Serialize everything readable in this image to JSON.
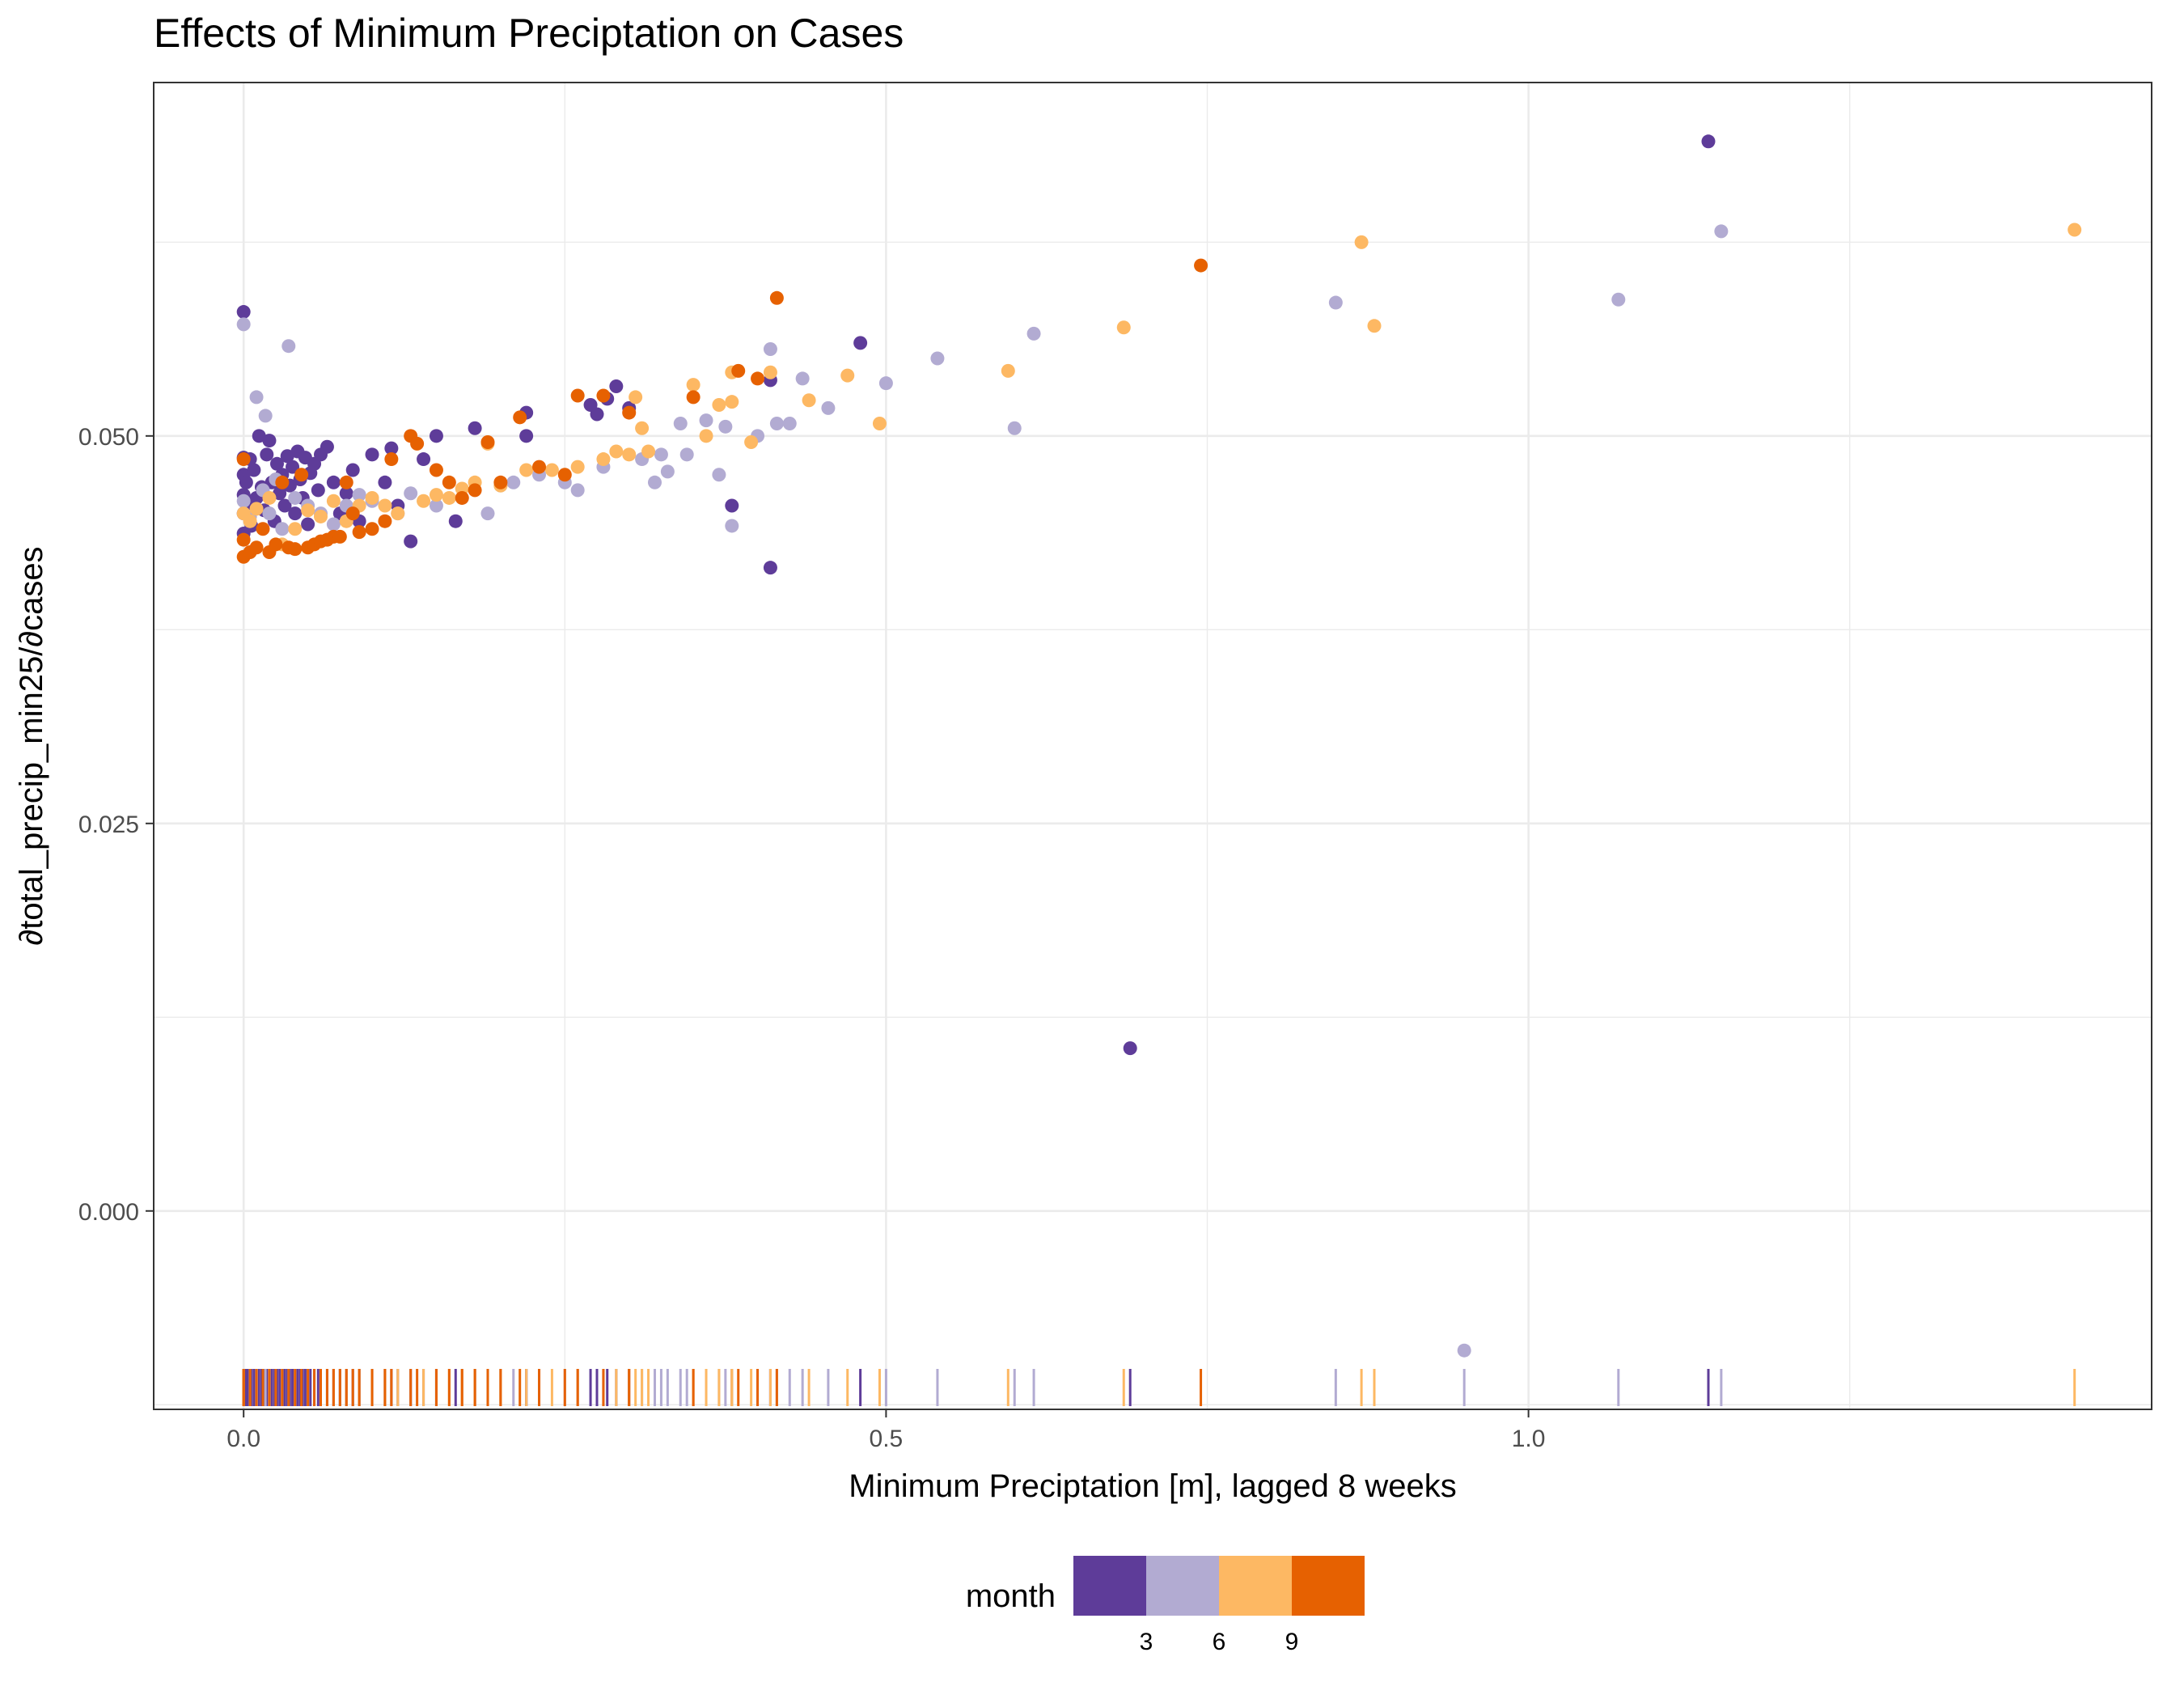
{
  "chart_data": {
    "type": "scatter",
    "title": "Effects of Minimum Preciptation on Cases",
    "xlabel": "Minimum Preciptation [m], lagged 8 weeks",
    "ylabel": "∂total_precip_min25/∂cases",
    "xlim": [
      -0.07,
      1.485
    ],
    "ylim": [
      -0.0128,
      0.0728
    ],
    "x_ticks": [
      0.0,
      0.5,
      1.0
    ],
    "x_tick_labels": [
      "0.0",
      "0.5",
      "1.0"
    ],
    "y_ticks": [
      0.0,
      0.025,
      0.05
    ],
    "y_tick_labels": [
      "0.000",
      "0.025",
      "0.050"
    ],
    "grid": true,
    "rug": "bottom",
    "legend": {
      "title": "month",
      "position": "bottom",
      "type": "binned colorbar",
      "bins": [
        {
          "color": "#5e3c99"
        },
        {
          "color": "#b2abd2"
        },
        {
          "color": "#fdb863"
        },
        {
          "color": "#e66101"
        }
      ],
      "break_labels": [
        "3",
        "6",
        "9"
      ]
    },
    "series": [
      {
        "color": "#5e3c99",
        "points": [
          [
            0.0,
            0.058
          ],
          [
            0.0,
            0.0486
          ],
          [
            0.0,
            0.0475
          ],
          [
            0.0,
            0.0462
          ],
          [
            0.0,
            0.045
          ],
          [
            0.0,
            0.0437
          ],
          [
            0.002,
            0.047
          ],
          [
            0.003,
            0.0455
          ],
          [
            0.005,
            0.0485
          ],
          [
            0.006,
            0.0442
          ],
          [
            0.008,
            0.0478
          ],
          [
            0.01,
            0.046
          ],
          [
            0.012,
            0.05
          ],
          [
            0.014,
            0.0467
          ],
          [
            0.016,
            0.0452
          ],
          [
            0.018,
            0.0488
          ],
          [
            0.02,
            0.0497
          ],
          [
            0.022,
            0.047
          ],
          [
            0.024,
            0.0445
          ],
          [
            0.026,
            0.0482
          ],
          [
            0.028,
            0.0463
          ],
          [
            0.03,
            0.0475
          ],
          [
            0.032,
            0.0455
          ],
          [
            0.034,
            0.0487
          ],
          [
            0.036,
            0.0468
          ],
          [
            0.038,
            0.048
          ],
          [
            0.04,
            0.045
          ],
          [
            0.042,
            0.049
          ],
          [
            0.044,
            0.0472
          ],
          [
            0.046,
            0.046
          ],
          [
            0.048,
            0.0486
          ],
          [
            0.05,
            0.0443
          ],
          [
            0.052,
            0.0476
          ],
          [
            0.055,
            0.0482
          ],
          [
            0.058,
            0.0465
          ],
          [
            0.06,
            0.0488
          ],
          [
            0.065,
            0.0493
          ],
          [
            0.07,
            0.047
          ],
          [
            0.075,
            0.045
          ],
          [
            0.08,
            0.0463
          ],
          [
            0.085,
            0.0478
          ],
          [
            0.09,
            0.0445
          ],
          [
            0.1,
            0.0488
          ],
          [
            0.11,
            0.047
          ],
          [
            0.115,
            0.0492
          ],
          [
            0.12,
            0.0455
          ],
          [
            0.13,
            0.0432
          ],
          [
            0.14,
            0.0485
          ],
          [
            0.15,
            0.05
          ],
          [
            0.165,
            0.0445
          ],
          [
            0.18,
            0.0505
          ],
          [
            0.22,
            0.0515
          ],
          [
            0.22,
            0.05
          ],
          [
            0.27,
            0.052
          ],
          [
            0.275,
            0.0514
          ],
          [
            0.283,
            0.0524
          ],
          [
            0.29,
            0.0532
          ],
          [
            0.3,
            0.0518
          ],
          [
            0.38,
            0.0455
          ],
          [
            0.41,
            0.0415
          ],
          [
            0.41,
            0.0536
          ],
          [
            0.48,
            0.056
          ],
          [
            0.69,
            0.0105
          ],
          [
            1.14,
            0.069
          ]
        ]
      },
      {
        "color": "#b2abd2",
        "points": [
          [
            0.0,
            0.0572
          ],
          [
            0.0,
            0.0458
          ],
          [
            0.005,
            0.0448
          ],
          [
            0.01,
            0.0525
          ],
          [
            0.015,
            0.0465
          ],
          [
            0.017,
            0.0513
          ],
          [
            0.02,
            0.045
          ],
          [
            0.025,
            0.0472
          ],
          [
            0.03,
            0.044
          ],
          [
            0.035,
            0.0558
          ],
          [
            0.04,
            0.046
          ],
          [
            0.05,
            0.0455
          ],
          [
            0.06,
            0.045
          ],
          [
            0.07,
            0.0443
          ],
          [
            0.08,
            0.0455
          ],
          [
            0.09,
            0.0462
          ],
          [
            0.1,
            0.0458
          ],
          [
            0.12,
            0.045
          ],
          [
            0.13,
            0.0463
          ],
          [
            0.15,
            0.0455
          ],
          [
            0.17,
            0.046
          ],
          [
            0.19,
            0.045
          ],
          [
            0.2,
            0.0468
          ],
          [
            0.21,
            0.047
          ],
          [
            0.23,
            0.0475
          ],
          [
            0.25,
            0.047
          ],
          [
            0.26,
            0.0465
          ],
          [
            0.28,
            0.048
          ],
          [
            0.31,
            0.0485
          ],
          [
            0.32,
            0.047
          ],
          [
            0.325,
            0.0488
          ],
          [
            0.33,
            0.0477
          ],
          [
            0.34,
            0.0508
          ],
          [
            0.345,
            0.0488
          ],
          [
            0.36,
            0.051
          ],
          [
            0.37,
            0.0475
          ],
          [
            0.375,
            0.0506
          ],
          [
            0.38,
            0.0442
          ],
          [
            0.4,
            0.05
          ],
          [
            0.41,
            0.0556
          ],
          [
            0.415,
            0.0508
          ],
          [
            0.425,
            0.0508
          ],
          [
            0.435,
            0.0537
          ],
          [
            0.455,
            0.0518
          ],
          [
            0.5,
            0.0534
          ],
          [
            0.54,
            0.055
          ],
          [
            0.6,
            0.0505
          ],
          [
            0.615,
            0.0566
          ],
          [
            0.85,
            0.0586
          ],
          [
            0.95,
            -0.009
          ],
          [
            1.07,
            0.0588
          ],
          [
            1.15,
            0.0632
          ]
        ]
      },
      {
        "color": "#fdb863",
        "points": [
          [
            0.0,
            0.045
          ],
          [
            0.005,
            0.0445
          ],
          [
            0.01,
            0.0453
          ],
          [
            0.02,
            0.046
          ],
          [
            0.03,
            0.043
          ],
          [
            0.04,
            0.044
          ],
          [
            0.05,
            0.0452
          ],
          [
            0.06,
            0.0448
          ],
          [
            0.07,
            0.0458
          ],
          [
            0.08,
            0.0445
          ],
          [
            0.09,
            0.0455
          ],
          [
            0.1,
            0.046
          ],
          [
            0.11,
            0.0455
          ],
          [
            0.12,
            0.045
          ],
          [
            0.14,
            0.0458
          ],
          [
            0.15,
            0.0462
          ],
          [
            0.16,
            0.046
          ],
          [
            0.17,
            0.0466
          ],
          [
            0.18,
            0.047
          ],
          [
            0.19,
            0.0495
          ],
          [
            0.2,
            0.0468
          ],
          [
            0.22,
            0.0478
          ],
          [
            0.24,
            0.0478
          ],
          [
            0.26,
            0.048
          ],
          [
            0.28,
            0.0485
          ],
          [
            0.29,
            0.049
          ],
          [
            0.3,
            0.0488
          ],
          [
            0.305,
            0.0525
          ],
          [
            0.31,
            0.0505
          ],
          [
            0.315,
            0.049
          ],
          [
            0.35,
            0.0533
          ],
          [
            0.36,
            0.05
          ],
          [
            0.37,
            0.052
          ],
          [
            0.38,
            0.0522
          ],
          [
            0.38,
            0.0541
          ],
          [
            0.395,
            0.0496
          ],
          [
            0.41,
            0.0541
          ],
          [
            0.44,
            0.0523
          ],
          [
            0.47,
            0.0539
          ],
          [
            0.495,
            0.0508
          ],
          [
            0.595,
            0.0542
          ],
          [
            0.685,
            0.057
          ],
          [
            0.87,
            0.0625
          ],
          [
            0.88,
            0.0571
          ],
          [
            1.425,
            0.0633
          ]
        ]
      },
      {
        "color": "#e66101",
        "points": [
          [
            0.0,
            0.0485
          ],
          [
            0.0,
            0.0433
          ],
          [
            0.0,
            0.0422
          ],
          [
            0.005,
            0.0425
          ],
          [
            0.01,
            0.0428
          ],
          [
            0.015,
            0.044
          ],
          [
            0.02,
            0.0425
          ],
          [
            0.025,
            0.043
          ],
          [
            0.03,
            0.047
          ],
          [
            0.035,
            0.0428
          ],
          [
            0.04,
            0.0427
          ],
          [
            0.045,
            0.0475
          ],
          [
            0.05,
            0.0428
          ],
          [
            0.055,
            0.043
          ],
          [
            0.06,
            0.0432
          ],
          [
            0.065,
            0.0433
          ],
          [
            0.07,
            0.0435
          ],
          [
            0.075,
            0.0435
          ],
          [
            0.08,
            0.047
          ],
          [
            0.085,
            0.045
          ],
          [
            0.09,
            0.0438
          ],
          [
            0.1,
            0.044
          ],
          [
            0.11,
            0.0445
          ],
          [
            0.115,
            0.0485
          ],
          [
            0.13,
            0.05
          ],
          [
            0.135,
            0.0495
          ],
          [
            0.15,
            0.0478
          ],
          [
            0.16,
            0.047
          ],
          [
            0.17,
            0.046
          ],
          [
            0.18,
            0.0465
          ],
          [
            0.19,
            0.0496
          ],
          [
            0.2,
            0.047
          ],
          [
            0.215,
            0.0512
          ],
          [
            0.23,
            0.048
          ],
          [
            0.25,
            0.0475
          ],
          [
            0.26,
            0.0526
          ],
          [
            0.28,
            0.0526
          ],
          [
            0.3,
            0.0515
          ],
          [
            0.35,
            0.0525
          ],
          [
            0.385,
            0.0542
          ],
          [
            0.4,
            0.0537
          ],
          [
            0.415,
            0.0589
          ],
          [
            0.745,
            0.061
          ]
        ]
      }
    ]
  }
}
